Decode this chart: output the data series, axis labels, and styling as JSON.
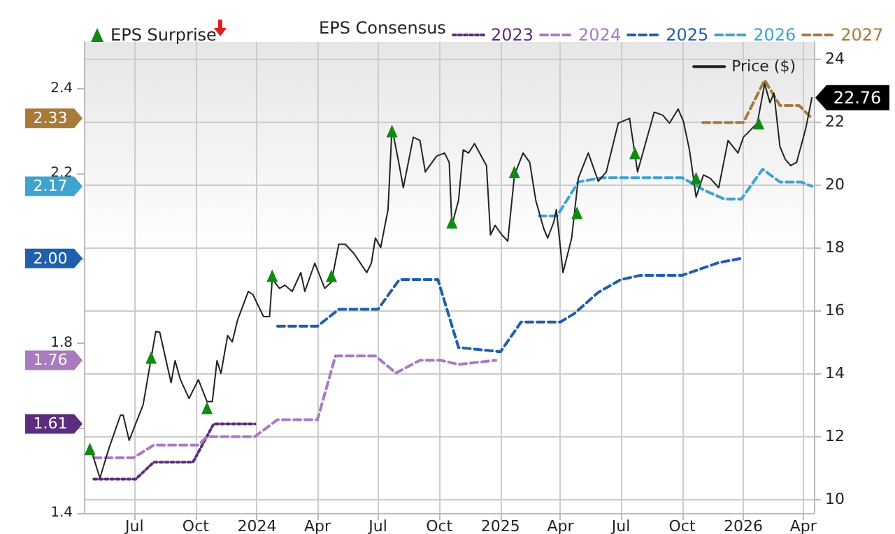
{
  "chart_data": {
    "type": "line",
    "legend_title": "EPS Consensus",
    "legend": "top",
    "grid": true,
    "xlim": [
      "2023-04-16",
      "2026-04-17"
    ],
    "xticks": [
      {
        "value": "2023-07-01",
        "label": "Jul"
      },
      {
        "value": "2023-10-01",
        "label": "Oct"
      },
      {
        "value": "2024-01-01",
        "label": "2024"
      },
      {
        "value": "2024-04-01",
        "label": "Apr"
      },
      {
        "value": "2024-07-01",
        "label": "Jul"
      },
      {
        "value": "2024-10-01",
        "label": "Oct"
      },
      {
        "value": "2025-01-01",
        "label": "2025"
      },
      {
        "value": "2025-04-01",
        "label": "Apr"
      },
      {
        "value": "2025-07-01",
        "label": "Jul"
      },
      {
        "value": "2025-10-01",
        "label": "Oct"
      },
      {
        "value": "2026-01-01",
        "label": "2026"
      },
      {
        "value": "2026-04-01",
        "label": "Apr"
      }
    ],
    "ylim": [
      1.4,
      2.51
    ],
    "yticks": [
      1.4,
      {
        "value": 1.6,
        "label": null
      },
      1.8,
      {
        "value": 2.0,
        "label": null
      },
      2.2,
      2.4
    ],
    "y2lim": [
      9.56,
      24.53
    ],
    "y2ticks": [
      10,
      12,
      14,
      16,
      18,
      20,
      22,
      24
    ],
    "series": [
      {
        "name": "2023",
        "color": "#5c2d7e",
        "line_style": "dotted",
        "marker": "none",
        "x": [
          "2023-05-01",
          "2023-07-03",
          "2023-07-30",
          "2023-09-27",
          "2023-10-28",
          "2023-12-29"
        ],
        "values": [
          1.48,
          1.48,
          1.52,
          1.52,
          1.61,
          1.61
        ]
      },
      {
        "name": "2024",
        "color": "#a97bbf",
        "line_style": "dashed",
        "marker": "none",
        "x": [
          "2023-05-01",
          "2023-06-29",
          "2023-07-30",
          "2023-10-05",
          "2023-10-18",
          "2023-12-29",
          "2024-02-01",
          "2024-04-01",
          "2024-04-28",
          "2024-06-27",
          "2024-07-28",
          "2024-09-02",
          "2024-10-03",
          "2024-10-30",
          "2024-12-25"
        ],
        "values": [
          1.53,
          1.53,
          1.56,
          1.56,
          1.58,
          1.58,
          1.62,
          1.62,
          1.77,
          1.77,
          1.73,
          1.76,
          1.76,
          1.75,
          1.76
        ]
      },
      {
        "name": "2025",
        "color": "#1f5fad",
        "line_style": "dashed",
        "marker": "none",
        "x": [
          "2024-02-01",
          "2024-04-01",
          "2024-05-03",
          "2024-07-01",
          "2024-08-02",
          "2024-09-29",
          "2024-10-30",
          "2025-01-01",
          "2025-02-01",
          "2025-04-01",
          "2025-04-22",
          "2025-05-28",
          "2025-07-01",
          "2025-07-30",
          "2025-10-01",
          "2025-11-25",
          "2025-12-29"
        ],
        "values": [
          1.84,
          1.84,
          1.88,
          1.88,
          1.95,
          1.95,
          1.79,
          1.78,
          1.85,
          1.85,
          1.87,
          1.92,
          1.95,
          1.96,
          1.96,
          1.99,
          2.0
        ]
      },
      {
        "name": "2026",
        "color": "#3fa3cf",
        "line_style": "dashed",
        "marker": "none",
        "x": [
          "2025-02-28",
          "2025-03-27",
          "2025-04-28",
          "2025-06-02",
          "2025-10-01",
          "2025-11-04",
          "2025-12-03",
          "2025-12-29",
          "2026-01-30",
          "2026-02-25",
          "2026-03-29",
          "2026-04-14"
        ],
        "values": [
          2.1,
          2.1,
          2.18,
          2.19,
          2.19,
          2.16,
          2.14,
          2.14,
          2.21,
          2.18,
          2.18,
          2.17
        ]
      },
      {
        "name": "2027",
        "color": "#a87a3a",
        "line_style": "dashed",
        "marker": "none",
        "x": [
          "2025-11-01",
          "2026-01-01",
          "2026-02-02",
          "2026-02-25",
          "2026-03-26",
          "2026-04-14"
        ],
        "values": [
          2.32,
          2.32,
          2.42,
          2.36,
          2.36,
          2.33
        ]
      },
      {
        "name": "Price ($)",
        "color": "#222222",
        "axis": "y2",
        "line_style": "solid",
        "marker": "none",
        "x": [
          "2023-04-25",
          "2023-05-10",
          "2023-05-24",
          "2023-06-10",
          "2023-06-14",
          "2023-06-23",
          "2023-07-14",
          "2023-08-02",
          "2023-08-08",
          "2023-08-25",
          "2023-08-31",
          "2023-09-08",
          "2023-09-21",
          "2023-10-05",
          "2023-10-18",
          "2023-10-26",
          "2023-11-02",
          "2023-11-08",
          "2023-11-18",
          "2023-11-25",
          "2023-12-03",
          "2023-12-19",
          "2023-12-26",
          "2024-01-11",
          "2024-01-20",
          "2024-01-24",
          "2024-02-04",
          "2024-02-12",
          "2024-02-23",
          "2024-03-07",
          "2024-03-13",
          "2024-03-28",
          "2024-04-12",
          "2024-04-22",
          "2024-05-03",
          "2024-05-13",
          "2024-05-26",
          "2024-06-14",
          "2024-06-21",
          "2024-06-27",
          "2024-07-05",
          "2024-07-16",
          "2024-07-22",
          "2024-08-02",
          "2024-08-08",
          "2024-08-23",
          "2024-09-02",
          "2024-09-10",
          "2024-09-27",
          "2024-10-09",
          "2024-10-16",
          "2024-10-20",
          "2024-10-30",
          "2024-11-06",
          "2024-11-14",
          "2024-11-23",
          "2024-12-11",
          "2024-12-17",
          "2024-12-24",
          "2025-01-03",
          "2025-01-12",
          "2025-01-22",
          "2025-02-04",
          "2025-02-14",
          "2025-02-23",
          "2025-03-07",
          "2025-03-13",
          "2025-03-22",
          "2025-03-26",
          "2025-04-05",
          "2025-04-18",
          "2025-04-28",
          "2025-05-13",
          "2025-05-28",
          "2025-06-09",
          "2025-06-27",
          "2025-07-14",
          "2025-07-26",
          "2025-08-20",
          "2025-09-02",
          "2025-09-12",
          "2025-09-25",
          "2025-10-03",
          "2025-10-12",
          "2025-10-22",
          "2025-11-02",
          "2025-11-12",
          "2025-11-25",
          "2025-12-09",
          "2025-12-24",
          "2026-01-01",
          "2026-01-22",
          "2026-02-02",
          "2026-02-10",
          "2026-02-16",
          "2026-02-25",
          "2026-03-05",
          "2026-03-13",
          "2026-03-22",
          "2026-04-05",
          "2026-04-14"
        ],
        "values": [
          11.7,
          10.67,
          11.64,
          12.67,
          12.67,
          11.87,
          13.0,
          15.33,
          15.3,
          13.7,
          14.4,
          13.8,
          13.2,
          13.8,
          13.1,
          13.1,
          14.4,
          14.0,
          15.2,
          15.0,
          15.7,
          16.6,
          16.5,
          15.8,
          15.8,
          17.0,
          16.7,
          16.8,
          16.6,
          17.2,
          16.6,
          17.5,
          16.7,
          16.9,
          18.1,
          18.1,
          17.8,
          17.2,
          17.5,
          18.3,
          18.0,
          19.2,
          21.8,
          20.6,
          19.9,
          21.5,
          21.4,
          20.4,
          20.9,
          21.0,
          20.7,
          18.7,
          19.5,
          21.1,
          21.0,
          21.3,
          20.6,
          18.4,
          18.7,
          18.4,
          18.2,
          20.3,
          21.0,
          20.7,
          19.5,
          18.6,
          18.3,
          18.8,
          19.2,
          17.2,
          18.3,
          20.2,
          21.0,
          20.1,
          20.4,
          21.95,
          22.1,
          20.4,
          22.3,
          22.2,
          21.95,
          22.4,
          22.0,
          21.1,
          19.6,
          20.3,
          20.2,
          19.9,
          21.4,
          21.0,
          21.5,
          21.95,
          23.2,
          22.6,
          22.9,
          21.2,
          20.8,
          20.6,
          20.7,
          21.8,
          22.76
        ]
      },
      {
        "name": "EPS Surprise",
        "type": "scatter",
        "color": "#108a10",
        "axis": "y2",
        "marker": "triangle",
        "x": [
          "2023-04-25",
          "2023-07-26",
          "2023-10-18",
          "2024-01-24",
          "2024-04-22",
          "2024-07-22",
          "2024-10-20",
          "2025-01-22",
          "2025-04-26",
          "2025-07-22",
          "2025-10-22",
          "2026-01-24"
        ],
        "values": [
          11.6,
          14.5,
          12.9,
          17.1,
          17.1,
          21.7,
          18.8,
          20.4,
          19.1,
          21.0,
          20.2,
          21.95
        ]
      }
    ],
    "annotations": [
      "1.61",
      "1.76",
      "2.00",
      "2.17",
      "2.33",
      "22.76"
    ]
  }
}
